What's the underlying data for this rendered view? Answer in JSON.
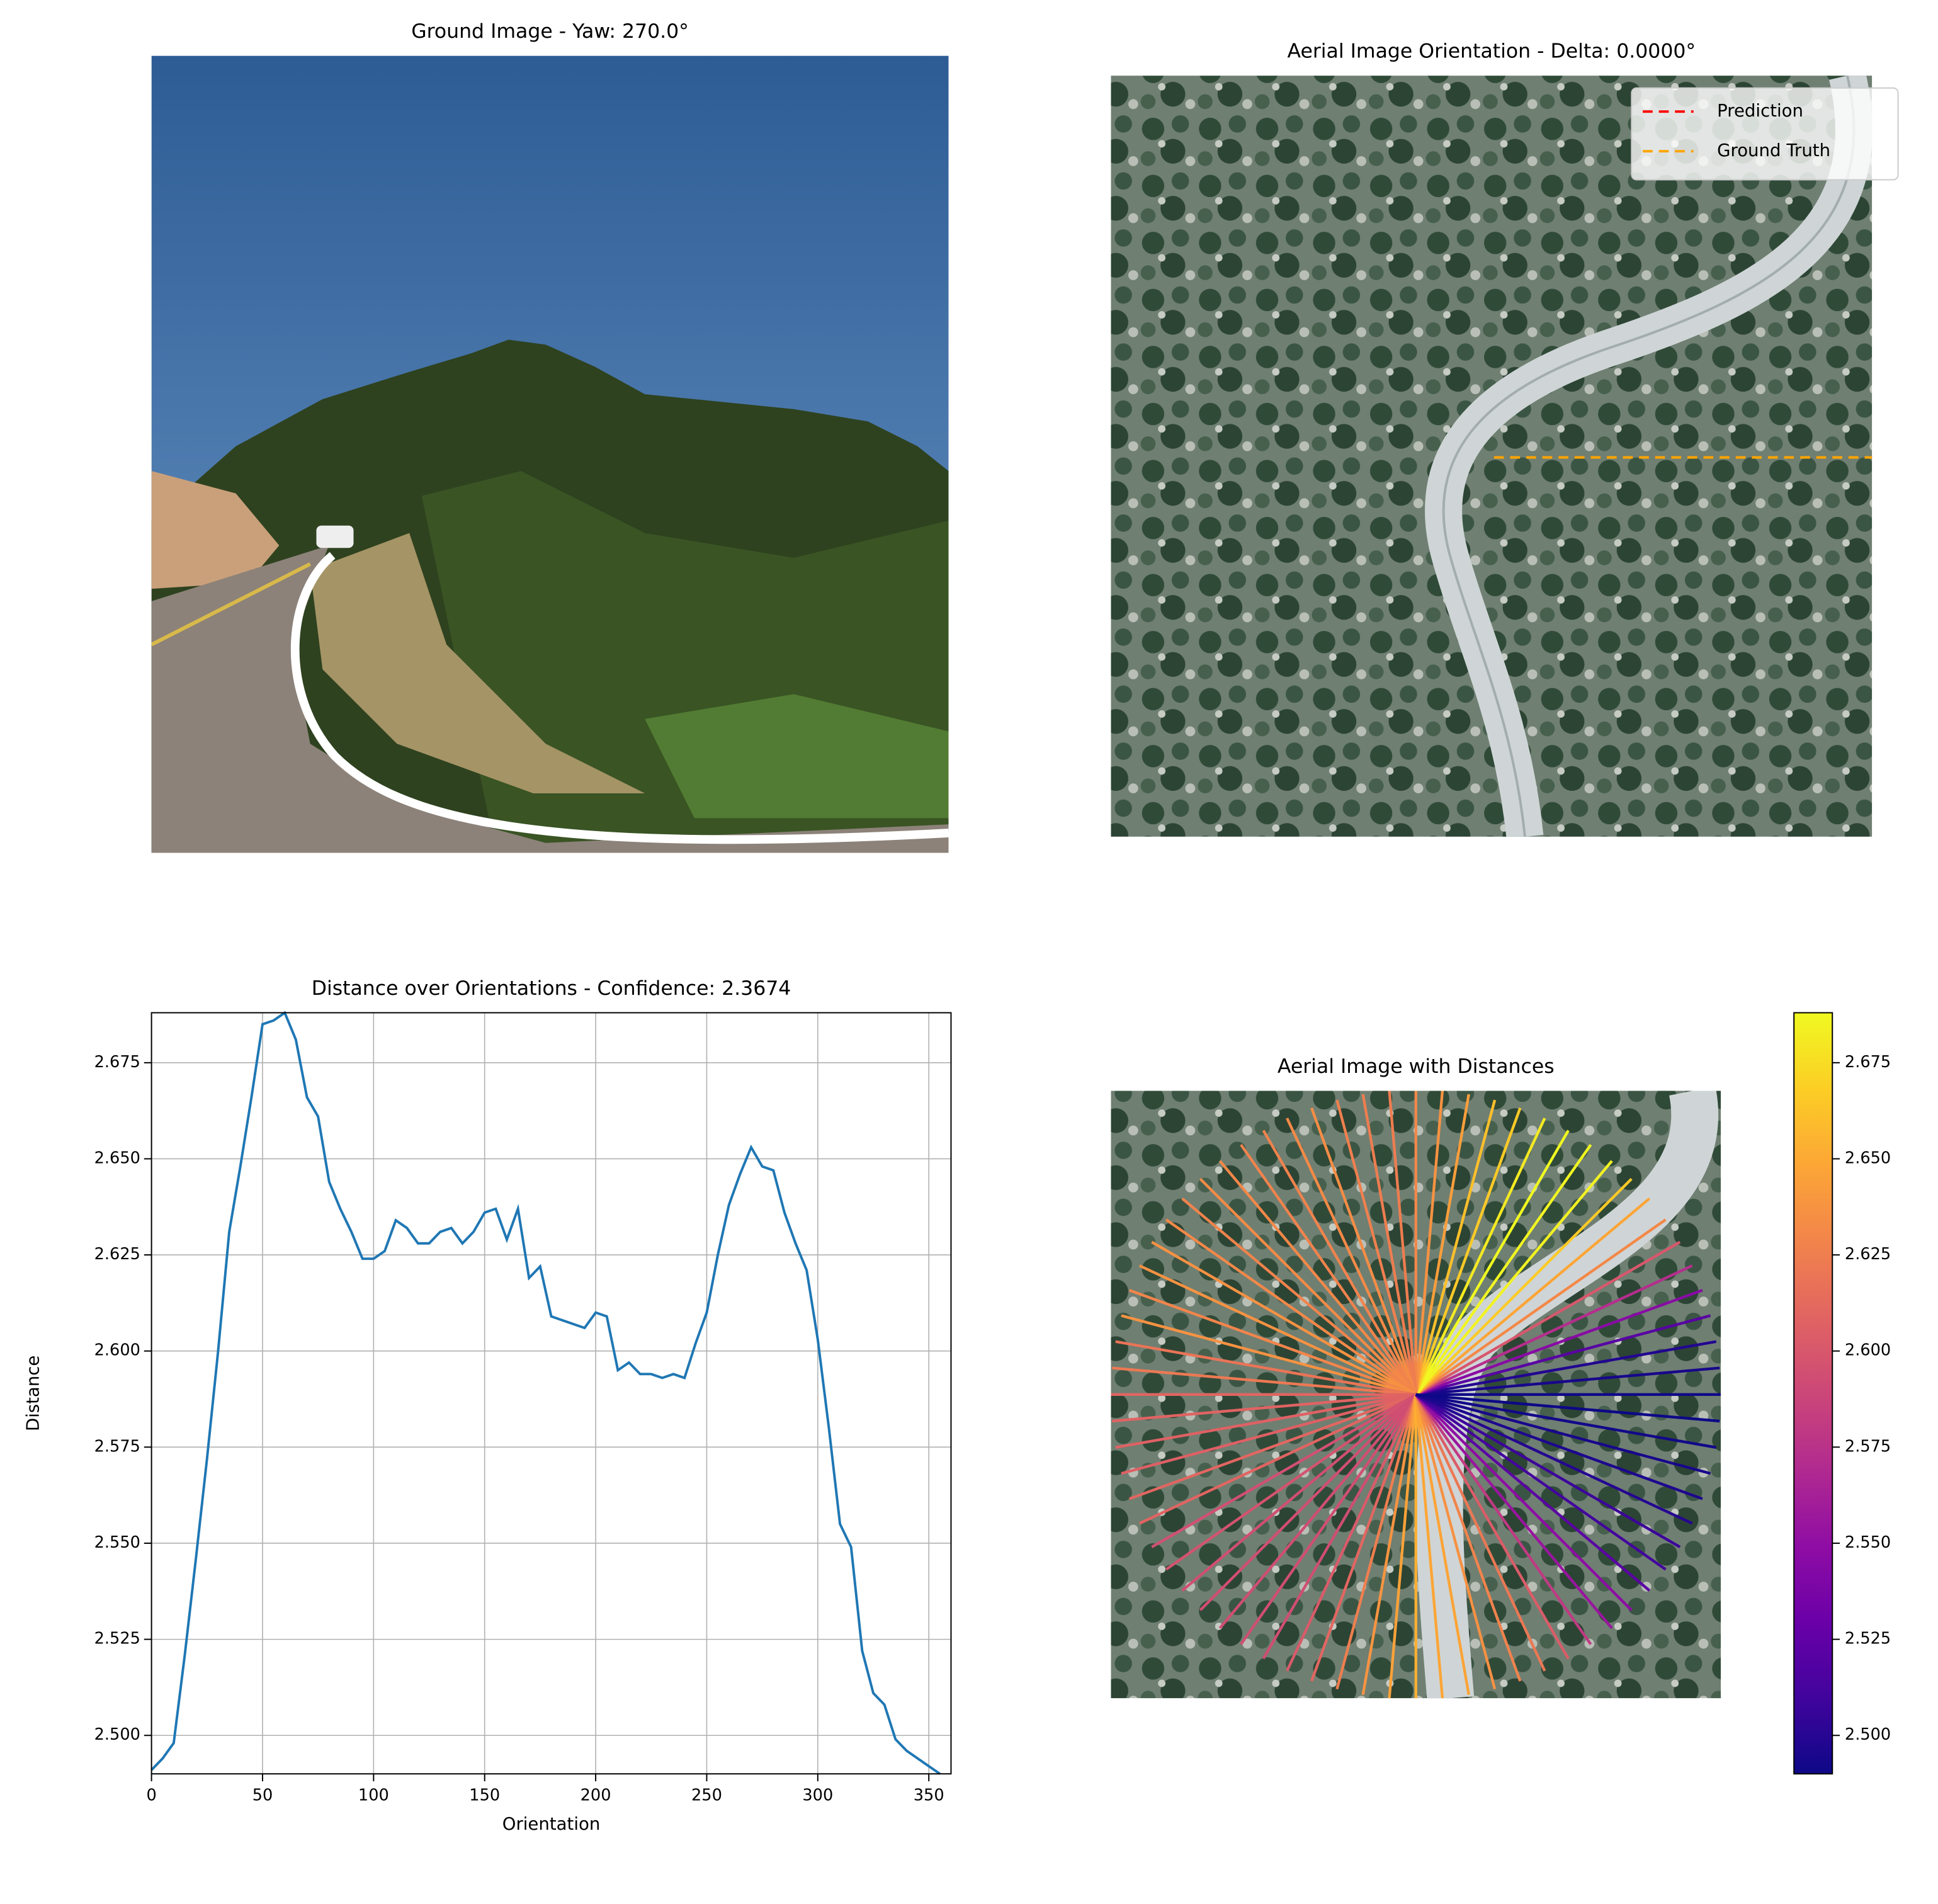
{
  "chart_data": [
    {
      "type": "image",
      "title": "Ground Image - Yaw: 270.0°"
    },
    {
      "type": "image",
      "title": "Aerial Image Orientation - Delta: 0.0000°",
      "legend": "upper right",
      "series": [
        {
          "name": "Prediction",
          "color": "#ff0000"
        },
        {
          "name": "Ground Truth",
          "color": "#ffa500"
        }
      ]
    },
    {
      "type": "line",
      "title": "Distance over Orientations - Confidence: 2.3674",
      "xlabel": "Orientation",
      "ylabel": "Distance",
      "color": "#1f77b4",
      "grid": true,
      "x": [
        0,
        5,
        10,
        15,
        20,
        25,
        30,
        35,
        40,
        45,
        50,
        55,
        60,
        65,
        70,
        75,
        80,
        85,
        90,
        95,
        100,
        105,
        110,
        115,
        120,
        125,
        130,
        135,
        140,
        145,
        150,
        155,
        160,
        165,
        170,
        175,
        180,
        185,
        190,
        195,
        200,
        205,
        210,
        215,
        220,
        225,
        230,
        235,
        240,
        245,
        250,
        255,
        260,
        265,
        270,
        275,
        280,
        285,
        290,
        295,
        300,
        305,
        310,
        315,
        320,
        325,
        330,
        335,
        340,
        345,
        350,
        355
      ],
      "values": [
        2.491,
        2.494,
        2.498,
        2.521,
        2.546,
        2.572,
        2.6,
        2.631,
        2.648,
        2.666,
        2.685,
        2.686,
        2.688,
        2.681,
        2.666,
        2.661,
        2.644,
        2.637,
        2.631,
        2.624,
        2.624,
        2.626,
        2.634,
        2.632,
        2.628,
        2.628,
        2.631,
        2.632,
        2.628,
        2.631,
        2.636,
        2.637,
        2.629,
        2.637,
        2.619,
        2.622,
        2.609,
        2.608,
        2.607,
        2.606,
        2.61,
        2.609,
        2.595,
        2.597,
        2.594,
        2.594,
        2.593,
        2.594,
        2.593,
        2.602,
        2.61,
        2.625,
        2.638,
        2.646,
        2.653,
        2.648,
        2.647,
        2.636,
        2.628,
        2.621,
        2.603,
        2.58,
        2.555,
        2.549,
        2.522,
        2.511,
        2.508,
        2.499,
        2.496,
        2.494,
        2.492,
        2.49
      ],
      "xlim": [
        0,
        360
      ],
      "xticks": [
        0,
        50,
        100,
        150,
        200,
        250,
        300,
        350
      ],
      "ylim": [
        2.49,
        2.688
      ],
      "yticks": [
        {
          "value": 2.5,
          "label": "2.500"
        },
        {
          "value": 2.525,
          "label": "2.525"
        },
        {
          "value": 2.55,
          "label": "2.550"
        },
        {
          "value": 2.575,
          "label": "2.575"
        },
        {
          "value": 2.6,
          "label": "2.600"
        },
        {
          "value": 2.625,
          "label": "2.625"
        },
        {
          "value": 2.65,
          "label": "2.650"
        },
        {
          "value": 2.675,
          "label": "2.675"
        }
      ]
    },
    {
      "type": "polar",
      "title": "Aerial Image with Distances",
      "colormap": "plasma",
      "clim": [
        2.49,
        2.688
      ],
      "cticks": [
        {
          "value": 2.5,
          "label": "2.500"
        },
        {
          "value": 2.525,
          "label": "2.525"
        },
        {
          "value": 2.55,
          "label": "2.550"
        },
        {
          "value": 2.575,
          "label": "2.575"
        },
        {
          "value": 2.6,
          "label": "2.600"
        },
        {
          "value": 2.625,
          "label": "2.625"
        },
        {
          "value": 2.65,
          "label": "2.650"
        },
        {
          "value": 2.675,
          "label": "2.675"
        }
      ]
    }
  ]
}
